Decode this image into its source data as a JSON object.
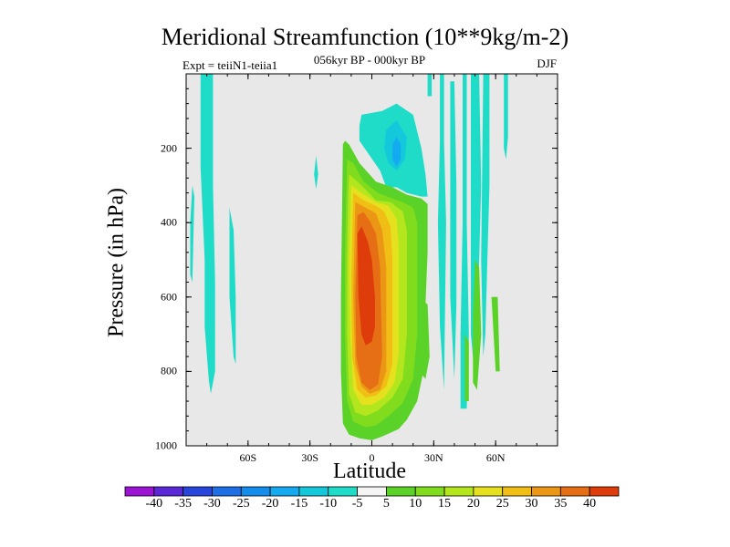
{
  "chart_data": {
    "type": "heatmap",
    "title": "Meridional Streamfunction (10**9kg/m-2)",
    "subtitle": "056kyr BP - 000kyr BP",
    "left_string": "Expt = teiiN1-teiia1",
    "right_string": "DJF",
    "xlabel": "Latitude",
    "ylabel": "Pressure (in hPa)",
    "xlim": [
      -90,
      90
    ],
    "ylim": [
      1000,
      0
    ],
    "x_ticks": [
      {
        "value": -60,
        "label": "60S"
      },
      {
        "value": -30,
        "label": "30S"
      },
      {
        "value": 0,
        "label": "0"
      },
      {
        "value": 30,
        "label": "30N"
      },
      {
        "value": 60,
        "label": "60N"
      }
    ],
    "y_ticks": [
      {
        "value": 200,
        "label": "200"
      },
      {
        "value": 400,
        "label": "400"
      },
      {
        "value": 600,
        "label": "600"
      },
      {
        "value": 800,
        "label": "800"
      },
      {
        "value": 1000,
        "label": "1000"
      }
    ],
    "missing_color": "#e8e8e8",
    "colorbar": {
      "levels": [
        -40,
        -35,
        -30,
        -25,
        -20,
        -15,
        -10,
        -5,
        5,
        10,
        15,
        20,
        25,
        30,
        35,
        40
      ],
      "level_labels": [
        "-40",
        "-35",
        "-30",
        "-25",
        "-20",
        "-15",
        "-10",
        "-5",
        "5",
        "10",
        "15",
        "20",
        "25",
        "30",
        "35",
        "40"
      ],
      "colors": [
        "#9b14d2",
        "#5a28d7",
        "#2846dc",
        "#1e6ee6",
        "#148ceb",
        "#14aaf0",
        "#14c8dc",
        "#1edcc8",
        "#f4f4f4",
        "#5ad228",
        "#82dc1e",
        "#b4e61e",
        "#e6e11e",
        "#f0be14",
        "#eb9614",
        "#e66e14",
        "#de3c0a"
      ]
    },
    "regions": [
      {
        "value": -7,
        "points": [
          [
            -83,
            0
          ],
          [
            -77,
            0
          ],
          [
            -77,
            300
          ],
          [
            -76,
            560
          ],
          [
            -76,
            800
          ],
          [
            -78,
            860
          ],
          [
            -79,
            825
          ],
          [
            -81,
            680
          ],
          [
            -81,
            500
          ],
          [
            -83,
            250
          ]
        ]
      },
      {
        "value": -7,
        "points": [
          [
            -88,
            400
          ],
          [
            -87,
            300
          ],
          [
            -86,
            330
          ],
          [
            -87,
            560
          ],
          [
            -88,
            540
          ]
        ]
      },
      {
        "value": -7,
        "points": [
          [
            -69,
            360
          ],
          [
            -67,
            420
          ],
          [
            -66,
            600
          ],
          [
            -66,
            780
          ],
          [
            -67,
            760
          ],
          [
            -69,
            600
          ]
        ]
      },
      {
        "value": -7,
        "points": [
          [
            -27,
            220
          ],
          [
            -26,
            270
          ],
          [
            -27,
            310
          ],
          [
            -28,
            270
          ]
        ]
      },
      {
        "value": -7,
        "points": [
          [
            -5,
            110
          ],
          [
            5,
            100
          ],
          [
            12,
            80
          ],
          [
            20,
            110
          ],
          [
            24,
            200
          ],
          [
            26,
            270
          ],
          [
            27,
            330
          ],
          [
            24,
            330
          ],
          [
            17,
            320
          ],
          [
            12,
            305
          ],
          [
            7,
            305
          ],
          [
            4,
            260
          ],
          [
            -1,
            220
          ],
          [
            -6,
            180
          ],
          [
            -6,
            140
          ]
        ]
      },
      {
        "value": -13,
        "points": [
          [
            7,
            150
          ],
          [
            12,
            125
          ],
          [
            17,
            170
          ],
          [
            16,
            230
          ],
          [
            12,
            260
          ],
          [
            8,
            240
          ],
          [
            6,
            200
          ]
        ]
      },
      {
        "value": -18,
        "points": [
          [
            10,
            190
          ],
          [
            12,
            170
          ],
          [
            14,
            190
          ],
          [
            14,
            230
          ],
          [
            12,
            250
          ],
          [
            10,
            230
          ]
        ]
      },
      {
        "value": -7,
        "points": [
          [
            27,
            0
          ],
          [
            29,
            0
          ],
          [
            29,
            60
          ],
          [
            27,
            60
          ]
        ]
      },
      {
        "value": -7,
        "points": [
          [
            33,
            0
          ],
          [
            35,
            0
          ],
          [
            35,
            180
          ],
          [
            36,
            400
          ],
          [
            35,
            850
          ],
          [
            33,
            680
          ],
          [
            32,
            400
          ],
          [
            33,
            180
          ]
        ]
      },
      {
        "value": -7,
        "points": [
          [
            38,
            20
          ],
          [
            40,
            20
          ],
          [
            41,
            300
          ],
          [
            41,
            620
          ],
          [
            40,
            820
          ],
          [
            38,
            600
          ],
          [
            38,
            300
          ]
        ]
      },
      {
        "value": -7,
        "points": [
          [
            44,
            0
          ],
          [
            46,
            0
          ],
          [
            46,
            400
          ],
          [
            47,
            700
          ],
          [
            46,
            900
          ],
          [
            43,
            900
          ],
          [
            43,
            700
          ],
          [
            44,
            400
          ]
        ]
      },
      {
        "value": -7,
        "points": [
          [
            48,
            0
          ],
          [
            52,
            0
          ],
          [
            53,
            300
          ],
          [
            52,
            500
          ],
          [
            51,
            700
          ],
          [
            50,
            820
          ],
          [
            48,
            700
          ]
        ]
      },
      {
        "value": -7,
        "points": [
          [
            54,
            0
          ],
          [
            57,
            0
          ],
          [
            57,
            300
          ],
          [
            56,
            500
          ],
          [
            55,
            700
          ],
          [
            54,
            760
          ],
          [
            53,
            500
          ]
        ]
      },
      {
        "value": -7,
        "points": [
          [
            64,
            0
          ],
          [
            66,
            0
          ],
          [
            66,
            170
          ],
          [
            65,
            230
          ],
          [
            64,
            200
          ]
        ]
      },
      {
        "value": 7,
        "points": [
          [
            -14,
            190
          ],
          [
            -13,
            180
          ],
          [
            -11,
            190
          ],
          [
            -6,
            240
          ],
          [
            2,
            290
          ],
          [
            10,
            305
          ],
          [
            17,
            325
          ],
          [
            24,
            335
          ],
          [
            27,
            350
          ],
          [
            27,
            480
          ],
          [
            26,
            620
          ],
          [
            25,
            800
          ],
          [
            22,
            880
          ],
          [
            17,
            930
          ],
          [
            13,
            955
          ],
          [
            5,
            975
          ],
          [
            0,
            985
          ],
          [
            -6,
            980
          ],
          [
            -11,
            970
          ],
          [
            -14,
            940
          ],
          [
            -15,
            800
          ],
          [
            -15,
            600
          ],
          [
            -14.5,
            400
          ]
        ]
      },
      {
        "value": 7,
        "points": [
          [
            23,
            600
          ],
          [
            27,
            620
          ],
          [
            28,
            760
          ],
          [
            26,
            820
          ],
          [
            23,
            800
          ]
        ]
      },
      {
        "value": 7,
        "points": [
          [
            45,
            700
          ],
          [
            47,
            720
          ],
          [
            47,
            880
          ],
          [
            45,
            880
          ]
        ]
      },
      {
        "value": 7,
        "points": [
          [
            50,
            500
          ],
          [
            52,
            520
          ],
          [
            53,
            700
          ],
          [
            51,
            850
          ],
          [
            49,
            830
          ],
          [
            49,
            650
          ]
        ]
      },
      {
        "value": 7,
        "points": [
          [
            58,
            600
          ],
          [
            61,
            600
          ],
          [
            62,
            800
          ],
          [
            60,
            800
          ]
        ]
      },
      {
        "value": 12,
        "points": [
          [
            -12,
            230
          ],
          [
            -9,
            240
          ],
          [
            -4,
            290
          ],
          [
            3,
            320
          ],
          [
            10,
            335
          ],
          [
            15,
            345
          ],
          [
            20,
            360
          ],
          [
            22,
            400
          ],
          [
            22,
            700
          ],
          [
            20,
            820
          ],
          [
            15,
            885
          ],
          [
            8,
            920
          ],
          [
            2,
            945
          ],
          [
            -3,
            950
          ],
          [
            -9,
            935
          ],
          [
            -12,
            880
          ],
          [
            -13,
            700
          ],
          [
            -13,
            500
          ],
          [
            -12.5,
            350
          ]
        ]
      },
      {
        "value": 17,
        "points": [
          [
            -11,
            270
          ],
          [
            -5,
            300
          ],
          [
            2,
            340
          ],
          [
            9,
            345
          ],
          [
            15,
            370
          ],
          [
            17,
            420
          ],
          [
            17,
            700
          ],
          [
            15,
            820
          ],
          [
            10,
            870
          ],
          [
            3,
            905
          ],
          [
            -3,
            920
          ],
          [
            -8,
            910
          ],
          [
            -11,
            860
          ],
          [
            -12,
            700
          ],
          [
            -12,
            500
          ],
          [
            -11.5,
            330
          ]
        ]
      },
      {
        "value": 22,
        "points": [
          [
            -10,
            300
          ],
          [
            -5,
            320
          ],
          [
            2,
            345
          ],
          [
            8,
            355
          ],
          [
            12,
            390
          ],
          [
            13,
            460
          ],
          [
            13,
            750
          ],
          [
            11,
            830
          ],
          [
            6,
            870
          ],
          [
            0,
            890
          ],
          [
            -5,
            890
          ],
          [
            -9,
            850
          ],
          [
            -10.5,
            700
          ],
          [
            -11,
            500
          ]
        ]
      },
      {
        "value": 27,
        "points": [
          [
            -9,
            320
          ],
          [
            -4,
            340
          ],
          [
            2,
            355
          ],
          [
            6,
            370
          ],
          [
            9,
            410
          ],
          [
            10,
            500
          ],
          [
            10,
            780
          ],
          [
            7,
            840
          ],
          [
            2,
            865
          ],
          [
            -3,
            870
          ],
          [
            -7,
            850
          ],
          [
            -9.5,
            760
          ],
          [
            -10,
            550
          ]
        ]
      },
      {
        "value": 32,
        "points": [
          [
            -8,
            345
          ],
          [
            -3,
            360
          ],
          [
            2,
            375
          ],
          [
            5,
            420
          ],
          [
            7,
            520
          ],
          [
            7,
            800
          ],
          [
            4,
            850
          ],
          [
            -1,
            860
          ],
          [
            -5,
            840
          ],
          [
            -8,
            780
          ],
          [
            -9,
            600
          ]
        ]
      },
      {
        "value": 37,
        "points": [
          [
            -7,
            380
          ],
          [
            -4,
            372
          ],
          [
            -1,
            395
          ],
          [
            2,
            430
          ],
          [
            4,
            520
          ],
          [
            5,
            760
          ],
          [
            3,
            835
          ],
          [
            -1,
            850
          ],
          [
            -5,
            830
          ],
          [
            -7.5,
            760
          ],
          [
            -8,
            600
          ]
        ]
      },
      {
        "value": 42,
        "points": [
          [
            -7,
            430
          ],
          [
            -5,
            410
          ],
          [
            -2,
            450
          ],
          [
            0,
            500
          ],
          [
            1.5,
            600
          ],
          [
            1.5,
            680
          ],
          [
            0,
            720
          ],
          [
            -3,
            730
          ],
          [
            -5,
            700
          ],
          [
            -6.5,
            600
          ]
        ]
      }
    ]
  }
}
